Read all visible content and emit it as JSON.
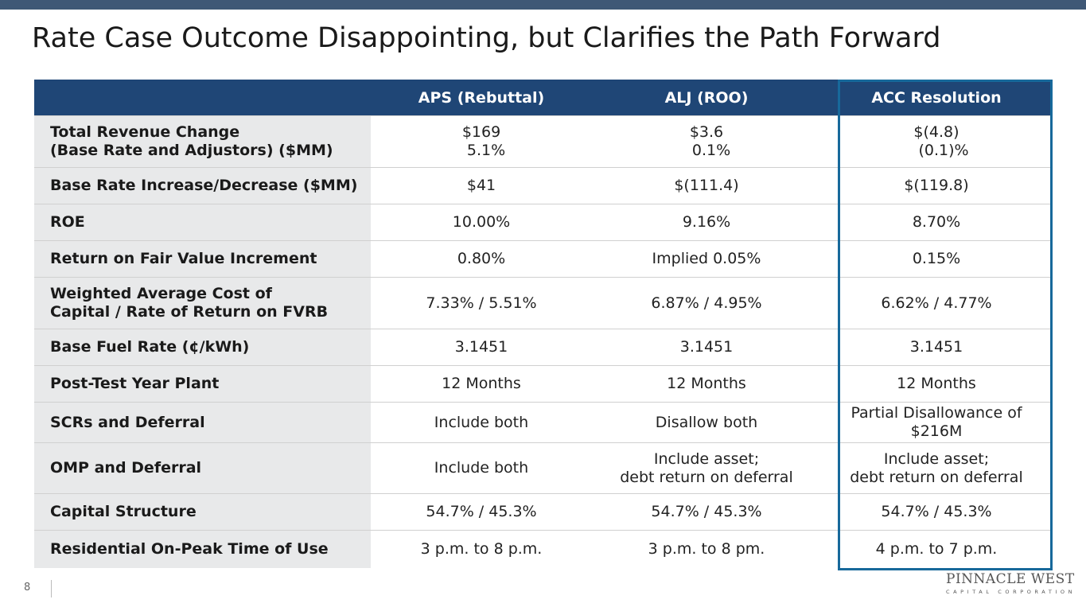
{
  "title": "Rate Case Outcome Disappointing, but Clarifies the Path Forward",
  "table": {
    "headers": [
      "",
      "APS (Rebuttal)",
      "ALJ (ROO)",
      "ACC Resolution"
    ],
    "rows": [
      {
        "label": [
          "Total Revenue Change",
          "(Base Rate and Adjustors) ($MM)"
        ],
        "values": [
          [
            "$169",
            "  5.1%"
          ],
          [
            "$3.6",
            "  0.1%"
          ],
          [
            "$(4.8)",
            "   (0.1)%"
          ]
        ]
      },
      {
        "label": [
          "Base Rate Increase/Decrease ($MM)"
        ],
        "values": [
          [
            "$41"
          ],
          [
            "$(111.4)"
          ],
          [
            "$(119.8)"
          ]
        ]
      },
      {
        "label": [
          "ROE"
        ],
        "values": [
          [
            "10.00%"
          ],
          [
            "9.16%"
          ],
          [
            "8.70%"
          ]
        ]
      },
      {
        "label": [
          "Return on Fair Value Increment"
        ],
        "values": [
          [
            "0.80%"
          ],
          [
            "Implied 0.05%"
          ],
          [
            "0.15%"
          ]
        ]
      },
      {
        "label": [
          "Weighted Average Cost of",
          "Capital / Rate of Return on FVRB"
        ],
        "values": [
          [
            "7.33% / 5.51%"
          ],
          [
            "6.87% / 4.95%"
          ],
          [
            "6.62% / 4.77%"
          ]
        ]
      },
      {
        "label": [
          "Base Fuel Rate (¢/kWh)"
        ],
        "values": [
          [
            "3.1451"
          ],
          [
            "3.1451"
          ],
          [
            "3.1451"
          ]
        ]
      },
      {
        "label": [
          "Post-Test Year Plant"
        ],
        "values": [
          [
            "12 Months"
          ],
          [
            "12 Months"
          ],
          [
            "12 Months"
          ]
        ]
      },
      {
        "label": [
          "SCRs and Deferral"
        ],
        "values": [
          [
            "Include both"
          ],
          [
            "Disallow both"
          ],
          [
            "Partial Disallowance of",
            "$216M"
          ]
        ]
      },
      {
        "label": [
          "OMP and Deferral"
        ],
        "values": [
          [
            "Include both"
          ],
          [
            "Include asset;",
            "debt return on deferral"
          ],
          [
            "Include asset;",
            "debt return on deferral"
          ]
        ]
      },
      {
        "label": [
          "Capital Structure"
        ],
        "values": [
          [
            "54.7% / 45.3%"
          ],
          [
            "54.7% / 45.3%"
          ],
          [
            "54.7% / 45.3%"
          ]
        ]
      },
      {
        "label": [
          "Residential On-Peak Time of Use"
        ],
        "values": [
          [
            "3 p.m. to 8 p.m."
          ],
          [
            "3 p.m. to 8 pm."
          ],
          [
            "4 p.m. to 7 p.m."
          ]
        ]
      }
    ]
  },
  "footer": {
    "page_number": "8",
    "logo_main": "PINNACLE WEST",
    "logo_sub": "CAPITAL CORPORATION"
  },
  "colors": {
    "top_bar": "#3f5876",
    "header_bg": "#1f4676",
    "label_bg": "#e8e9ea",
    "highlight_border": "#17699b"
  }
}
